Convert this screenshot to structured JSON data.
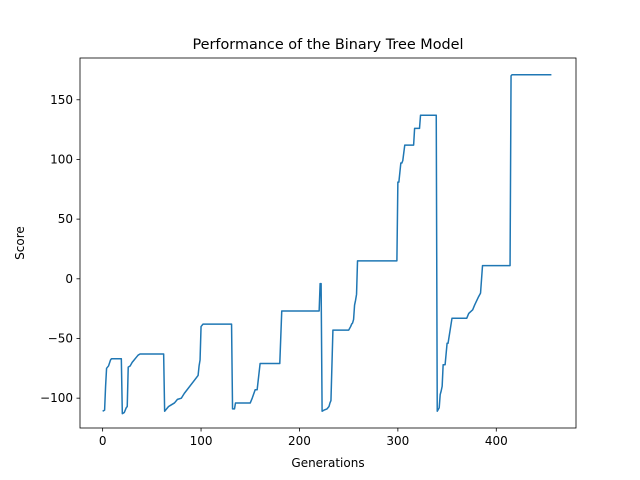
{
  "chart_data": {
    "type": "line",
    "title": "Performance of the Binary Tree Model",
    "xlabel": "Generations",
    "ylabel": "Score",
    "xlim": [
      -23,
      481
    ],
    "ylim": [
      -125,
      185
    ],
    "xticks": [
      0,
      100,
      200,
      300,
      400
    ],
    "yticks": [
      -100,
      -50,
      0,
      50,
      100,
      150
    ],
    "grid": false,
    "series": [
      {
        "color": "#1f77b4",
        "x": [
          0,
          2,
          3,
          4,
          6,
          8,
          9,
          19,
          20,
          22,
          24,
          25,
          26,
          28,
          30,
          32,
          34,
          36,
          38,
          62,
          63,
          65,
          67,
          69,
          73,
          76,
          80,
          83,
          97,
          98,
          99,
          100,
          102,
          131,
          132,
          134,
          135,
          150,
          152,
          155,
          157,
          160,
          162,
          180,
          182,
          220,
          221,
          222,
          223,
          225,
          228,
          230,
          231,
          232,
          234,
          236,
          250,
          252,
          253,
          254,
          255,
          256,
          257,
          258,
          259,
          260,
          298,
          299,
          300,
          301,
          303,
          304,
          305,
          307,
          316,
          317,
          318,
          322,
          323,
          324,
          339,
          340,
          342,
          343,
          344,
          345,
          346,
          348,
          350,
          351,
          355,
          356,
          363,
          370,
          372,
          376,
          378,
          382,
          384,
          386,
          387,
          388,
          389,
          390,
          414,
          415,
          416,
          417,
          456
        ],
        "y": [
          -111,
          -110,
          -90,
          -75,
          -73,
          -68,
          -67,
          -67,
          -113,
          -112,
          -108,
          -107,
          -74,
          -73,
          -70,
          -68,
          -66,
          -64,
          -63,
          -63,
          -111,
          -109,
          -107,
          -106,
          -104,
          -101,
          -100,
          -96,
          -81,
          -73,
          -68,
          -40,
          -38,
          -38,
          -109,
          -109,
          -104,
          -104,
          -100,
          -93,
          -93,
          -71,
          -71,
          -71,
          -27,
          -27,
          -4,
          -4,
          -111,
          -110,
          -109,
          -107,
          -104,
          -102,
          -43,
          -43,
          -43,
          -40,
          -38,
          -37,
          -34,
          -22,
          -18,
          -13,
          15,
          15,
          15,
          15,
          81,
          81,
          97,
          97,
          99,
          112,
          112,
          126,
          126,
          126,
          137,
          137,
          137,
          -111,
          -108,
          -97,
          -94,
          -90,
          -72,
          -72,
          -54,
          -54,
          -33,
          -33,
          -33,
          -33,
          -29,
          -26,
          -22,
          -15,
          -12,
          11,
          11,
          11,
          11,
          11,
          11,
          170,
          171,
          171,
          171
        ]
      }
    ]
  }
}
